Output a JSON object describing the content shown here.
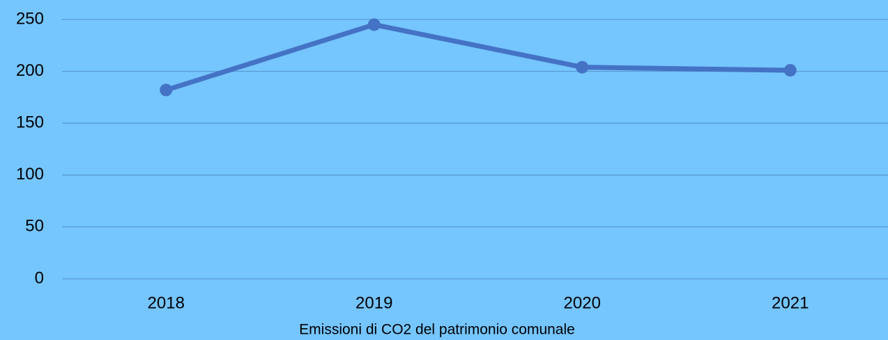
{
  "chart_data": {
    "type": "line",
    "x_label": "Emissioni di CO2 del patrimonio comunale",
    "categories": [
      "2018",
      "2019",
      "2020",
      "2021"
    ],
    "series": [
      {
        "name": "Emissioni",
        "color": "#4472c4",
        "values": [
          182,
          245,
          204,
          201
        ]
      }
    ],
    "ylim": [
      0,
      250
    ],
    "yticks": [
      0,
      50,
      100,
      150,
      200,
      250
    ],
    "grid": true
  }
}
